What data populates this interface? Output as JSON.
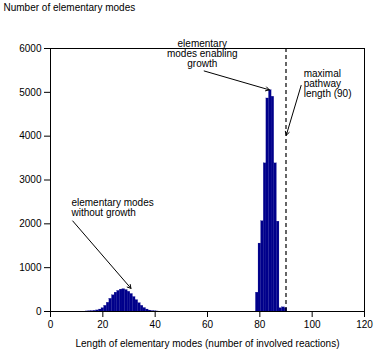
{
  "chart_data": {
    "type": "bar",
    "xlabel": "Length of elementary modes (number of involved reactions)",
    "ylabel": "Number of elementary modes",
    "x": [
      14,
      15,
      16,
      17,
      18,
      19,
      20,
      21,
      22,
      23,
      24,
      25,
      26,
      27,
      28,
      29,
      30,
      31,
      32,
      33,
      34,
      35,
      36,
      37,
      38,
      39,
      40,
      41,
      79,
      80,
      81,
      82,
      83,
      84,
      85,
      86,
      87,
      88,
      89,
      90
    ],
    "values": [
      2,
      5,
      8,
      15,
      25,
      45,
      75,
      130,
      200,
      290,
      370,
      430,
      470,
      500,
      510,
      490,
      450,
      400,
      330,
      260,
      190,
      130,
      80,
      45,
      22,
      10,
      4,
      1,
      430,
      1550,
      2060,
      3380,
      4860,
      5050,
      4900,
      3380,
      2050,
      75,
      95,
      75
    ],
    "color": "#00008B",
    "xlim": [
      0,
      120
    ],
    "ylim": [
      0,
      6000
    ],
    "xticks": [
      0,
      20,
      40,
      60,
      80,
      100,
      120
    ],
    "yticks": [
      0,
      1000,
      2000,
      3000,
      4000,
      5000,
      6000
    ],
    "grid": false,
    "vlines": [
      {
        "x": 90,
        "line_style": "dashed"
      }
    ],
    "annotations": [
      {
        "text": "elementary modes\nwithout growth",
        "xy": [
          31,
          510
        ],
        "xytext": [
          8,
          2100
        ]
      },
      {
        "text": "elementary\nmodes enabling\ngrowth",
        "xy": [
          84,
          5050
        ],
        "xytext": [
          58,
          5500
        ]
      },
      {
        "text": "maximal\npathway\nlength (90)",
        "xy": [
          90,
          4000
        ],
        "xytext": [
          96,
          5200
        ]
      }
    ]
  }
}
